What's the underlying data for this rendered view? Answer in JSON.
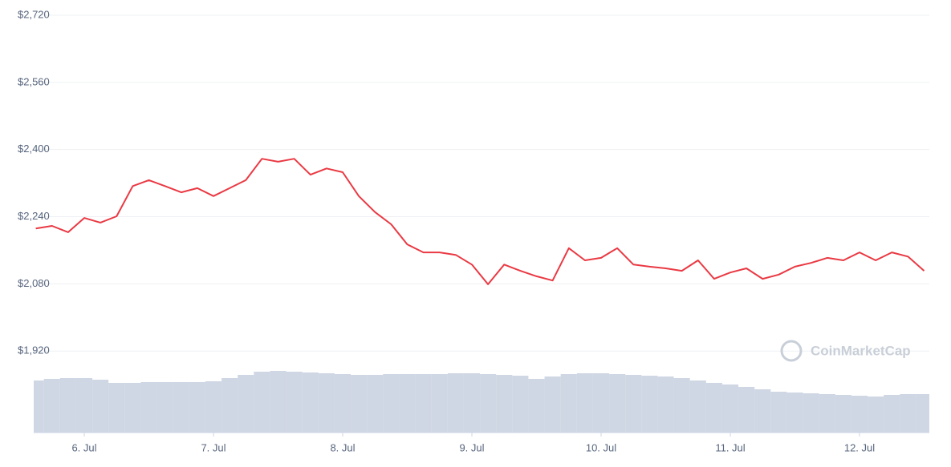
{
  "chart_data": {
    "type": "line",
    "watermark": "CoinMarketCap",
    "color": "#ea3943",
    "volume_color": "#cfd6e4",
    "grid": true,
    "categories": [
      null,
      null,
      null,
      "6. Jul",
      null,
      null,
      null,
      null,
      null,
      null,
      null,
      "7. Jul",
      null,
      null,
      null,
      null,
      null,
      null,
      null,
      "8. Jul",
      null,
      null,
      null,
      null,
      null,
      null,
      null,
      "9. Jul",
      null,
      null,
      null,
      null,
      null,
      null,
      null,
      "10. Jul",
      null,
      null,
      null,
      null,
      null,
      null,
      null,
      "11. Jul",
      null,
      null,
      null,
      null,
      null,
      null,
      null,
      "12. Jul",
      null,
      null,
      null,
      null
    ],
    "values": [
      2212,
      2218,
      2203,
      2237,
      2226,
      2241,
      2313,
      2327,
      2313,
      2298,
      2308,
      2289,
      2308,
      2327,
      2378,
      2371,
      2378,
      2340,
      2355,
      2346,
      2289,
      2251,
      2222,
      2174,
      2155,
      2155,
      2149,
      2126,
      2079,
      2126,
      2111,
      2098,
      2088,
      2165,
      2136,
      2142,
      2165,
      2126,
      2121,
      2117,
      2111,
      2136,
      2092,
      2107,
      2117,
      2092,
      2102,
      2121,
      2130,
      2142,
      2136,
      2155,
      2136,
      2155,
      2145,
      2111
    ],
    "volume": [
      65,
      67,
      68,
      68,
      66,
      62,
      62,
      63,
      63,
      63,
      63,
      64,
      68,
      72,
      76,
      77,
      76,
      75,
      74,
      73,
      72,
      72,
      73,
      73,
      73,
      73,
      74,
      74,
      73,
      72,
      71,
      67,
      70,
      73,
      74,
      74,
      73,
      72,
      71,
      70,
      68,
      65,
      62,
      60,
      57,
      54,
      51,
      50,
      49,
      48,
      47,
      46,
      45,
      47,
      48,
      48
    ],
    "ylim": [
      1720,
      2720
    ],
    "yticks": [
      {
        "value": 1920,
        "label": "$1,920"
      },
      {
        "value": 2080,
        "label": "$2,080"
      },
      {
        "value": 2240,
        "label": "$2,240"
      },
      {
        "value": 2400,
        "label": "$2,400"
      },
      {
        "value": 2560,
        "label": "$2,560"
      },
      {
        "value": 2720,
        "label": "$2,720"
      }
    ]
  }
}
